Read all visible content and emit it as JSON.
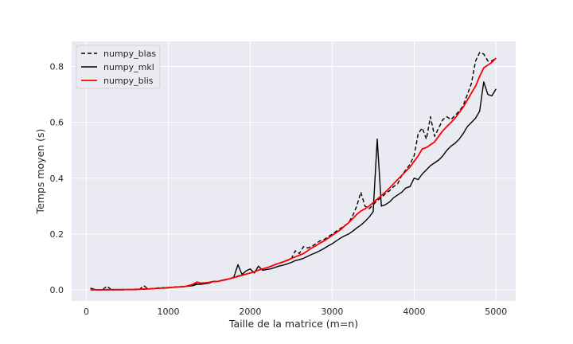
{
  "chart_data": {
    "type": "line",
    "xlabel": "Taille de la matrice (m=n)",
    "ylabel": "Temps moyen (s)",
    "xlim": [
      -180,
      5240
    ],
    "ylim": [
      -0.04,
      0.89
    ],
    "x_ticks": [
      0,
      1000,
      2000,
      3000,
      4000,
      5000
    ],
    "y_ticks": [
      0.0,
      0.2,
      0.4,
      0.6,
      0.8
    ],
    "x_tick_labels": [
      "0",
      "1000",
      "2000",
      "3000",
      "4000",
      "5000"
    ],
    "y_tick_labels": [
      "0.0",
      "0.2",
      "0.4",
      "0.6",
      "0.8"
    ],
    "grid": true,
    "legend_position": "top-left",
    "background": "#eaeaf2",
    "series": [
      {
        "name": "numpy_blas",
        "color": "#000000",
        "dash": "dashed",
        "points": [
          [
            50,
            0.006
          ],
          [
            100,
            0.002
          ],
          [
            150,
            0.0
          ],
          [
            200,
            0.001
          ],
          [
            250,
            0.013
          ],
          [
            300,
            0.002
          ],
          [
            350,
            0.001
          ],
          [
            400,
            0.001
          ],
          [
            450,
            0.001
          ],
          [
            500,
            0.001
          ],
          [
            550,
            0.0
          ],
          [
            600,
            0.001
          ],
          [
            650,
            0.002
          ],
          [
            700,
            0.015
          ],
          [
            750,
            0.004
          ],
          [
            800,
            0.004
          ],
          [
            850,
            0.006
          ],
          [
            900,
            0.008
          ],
          [
            950,
            0.008
          ],
          [
            1000,
            0.008
          ],
          [
            1050,
            0.009
          ],
          [
            1100,
            0.011
          ],
          [
            1150,
            0.01
          ],
          [
            1200,
            0.012
          ],
          [
            1250,
            0.016
          ],
          [
            1300,
            0.017
          ],
          [
            1350,
            0.022
          ],
          [
            1400,
            0.024
          ],
          [
            1450,
            0.027
          ],
          [
            1500,
            0.025
          ],
          [
            1550,
            0.03
          ],
          [
            1600,
            0.03
          ],
          [
            1650,
            0.033
          ],
          [
            1700,
            0.036
          ],
          [
            1750,
            0.04
          ],
          [
            1800,
            0.045
          ],
          [
            1850,
            0.05
          ],
          [
            1900,
            0.053
          ],
          [
            1950,
            0.056
          ],
          [
            2000,
            0.06
          ],
          [
            2050,
            0.065
          ],
          [
            2100,
            0.071
          ],
          [
            2150,
            0.075
          ],
          [
            2200,
            0.079
          ],
          [
            2250,
            0.084
          ],
          [
            2300,
            0.09
          ],
          [
            2350,
            0.095
          ],
          [
            2400,
            0.1
          ],
          [
            2450,
            0.105
          ],
          [
            2500,
            0.11
          ],
          [
            2550,
            0.14
          ],
          [
            2600,
            0.13
          ],
          [
            2650,
            0.155
          ],
          [
            2700,
            0.15
          ],
          [
            2750,
            0.155
          ],
          [
            2800,
            0.165
          ],
          [
            2850,
            0.175
          ],
          [
            2900,
            0.18
          ],
          [
            2950,
            0.19
          ],
          [
            3000,
            0.2
          ],
          [
            3050,
            0.21
          ],
          [
            3100,
            0.22
          ],
          [
            3150,
            0.23
          ],
          [
            3200,
            0.24
          ],
          [
            3250,
            0.265
          ],
          [
            3300,
            0.3
          ],
          [
            3350,
            0.35
          ],
          [
            3400,
            0.3
          ],
          [
            3450,
            0.29
          ],
          [
            3500,
            0.305
          ],
          [
            3550,
            0.32
          ],
          [
            3600,
            0.33
          ],
          [
            3650,
            0.345
          ],
          [
            3700,
            0.355
          ],
          [
            3750,
            0.37
          ],
          [
            3800,
            0.38
          ],
          [
            3850,
            0.41
          ],
          [
            3900,
            0.43
          ],
          [
            3950,
            0.45
          ],
          [
            4000,
            0.48
          ],
          [
            4050,
            0.56
          ],
          [
            4100,
            0.58
          ],
          [
            4150,
            0.54
          ],
          [
            4200,
            0.62
          ],
          [
            4250,
            0.55
          ],
          [
            4300,
            0.58
          ],
          [
            4350,
            0.61
          ],
          [
            4400,
            0.62
          ],
          [
            4450,
            0.61
          ],
          [
            4500,
            0.625
          ],
          [
            4550,
            0.64
          ],
          [
            4600,
            0.66
          ],
          [
            4650,
            0.7
          ],
          [
            4700,
            0.74
          ],
          [
            4750,
            0.82
          ],
          [
            4800,
            0.85
          ],
          [
            4850,
            0.845
          ],
          [
            4900,
            0.82
          ],
          [
            4950,
            0.82
          ],
          [
            5000,
            0.83
          ]
        ]
      },
      {
        "name": "numpy_mkl",
        "color": "#000000",
        "dash": "solid",
        "points": [
          [
            50,
            0.0
          ],
          [
            100,
            0.0
          ],
          [
            150,
            0.0
          ],
          [
            200,
            0.0
          ],
          [
            250,
            0.0
          ],
          [
            300,
            0.0
          ],
          [
            350,
            0.0
          ],
          [
            400,
            0.0
          ],
          [
            450,
            0.0
          ],
          [
            500,
            0.001
          ],
          [
            550,
            0.001
          ],
          [
            600,
            0.001
          ],
          [
            650,
            0.002
          ],
          [
            700,
            0.002
          ],
          [
            750,
            0.003
          ],
          [
            800,
            0.004
          ],
          [
            850,
            0.005
          ],
          [
            900,
            0.006
          ],
          [
            950,
            0.006
          ],
          [
            1000,
            0.007
          ],
          [
            1050,
            0.009
          ],
          [
            1100,
            0.01
          ],
          [
            1150,
            0.011
          ],
          [
            1200,
            0.012
          ],
          [
            1250,
            0.013
          ],
          [
            1300,
            0.015
          ],
          [
            1350,
            0.02
          ],
          [
            1400,
            0.02
          ],
          [
            1450,
            0.022
          ],
          [
            1500,
            0.024
          ],
          [
            1550,
            0.03
          ],
          [
            1600,
            0.03
          ],
          [
            1650,
            0.033
          ],
          [
            1700,
            0.036
          ],
          [
            1750,
            0.04
          ],
          [
            1800,
            0.045
          ],
          [
            1850,
            0.09
          ],
          [
            1900,
            0.055
          ],
          [
            1950,
            0.068
          ],
          [
            2000,
            0.075
          ],
          [
            2050,
            0.06
          ],
          [
            2100,
            0.085
          ],
          [
            2150,
            0.07
          ],
          [
            2200,
            0.073
          ],
          [
            2250,
            0.075
          ],
          [
            2300,
            0.08
          ],
          [
            2350,
            0.085
          ],
          [
            2400,
            0.088
          ],
          [
            2450,
            0.093
          ],
          [
            2500,
            0.098
          ],
          [
            2550,
            0.105
          ],
          [
            2600,
            0.108
          ],
          [
            2650,
            0.113
          ],
          [
            2700,
            0.12
          ],
          [
            2750,
            0.127
          ],
          [
            2800,
            0.133
          ],
          [
            2850,
            0.14
          ],
          [
            2900,
            0.148
          ],
          [
            2950,
            0.157
          ],
          [
            3000,
            0.165
          ],
          [
            3050,
            0.175
          ],
          [
            3100,
            0.185
          ],
          [
            3150,
            0.193
          ],
          [
            3200,
            0.2
          ],
          [
            3250,
            0.21
          ],
          [
            3300,
            0.222
          ],
          [
            3350,
            0.232
          ],
          [
            3400,
            0.245
          ],
          [
            3450,
            0.26
          ],
          [
            3500,
            0.28
          ],
          [
            3550,
            0.54
          ],
          [
            3600,
            0.3
          ],
          [
            3650,
            0.305
          ],
          [
            3700,
            0.315
          ],
          [
            3750,
            0.33
          ],
          [
            3800,
            0.34
          ],
          [
            3850,
            0.35
          ],
          [
            3900,
            0.365
          ],
          [
            3950,
            0.37
          ],
          [
            4000,
            0.4
          ],
          [
            4050,
            0.395
          ],
          [
            4100,
            0.415
          ],
          [
            4150,
            0.43
          ],
          [
            4200,
            0.445
          ],
          [
            4250,
            0.455
          ],
          [
            4300,
            0.465
          ],
          [
            4350,
            0.48
          ],
          [
            4400,
            0.5
          ],
          [
            4450,
            0.515
          ],
          [
            4500,
            0.525
          ],
          [
            4550,
            0.54
          ],
          [
            4600,
            0.56
          ],
          [
            4650,
            0.585
          ],
          [
            4700,
            0.6
          ],
          [
            4750,
            0.615
          ],
          [
            4800,
            0.64
          ],
          [
            4850,
            0.745
          ],
          [
            4900,
            0.7
          ],
          [
            4950,
            0.695
          ],
          [
            5000,
            0.72
          ]
        ]
      },
      {
        "name": "numpy_blis",
        "color": "#ff0000",
        "dash": "solid",
        "points": [
          [
            50,
            0.001
          ],
          [
            100,
            0.001
          ],
          [
            150,
            0.0
          ],
          [
            200,
            0.0
          ],
          [
            250,
            0.001
          ],
          [
            300,
            0.001
          ],
          [
            350,
            0.001
          ],
          [
            400,
            0.001
          ],
          [
            450,
            0.001
          ],
          [
            500,
            0.001
          ],
          [
            550,
            0.001
          ],
          [
            600,
            0.002
          ],
          [
            650,
            0.002
          ],
          [
            700,
            0.003
          ],
          [
            750,
            0.003
          ],
          [
            800,
            0.004
          ],
          [
            850,
            0.005
          ],
          [
            900,
            0.006
          ],
          [
            950,
            0.007
          ],
          [
            1000,
            0.008
          ],
          [
            1050,
            0.009
          ],
          [
            1100,
            0.01
          ],
          [
            1150,
            0.011
          ],
          [
            1200,
            0.012
          ],
          [
            1250,
            0.015
          ],
          [
            1300,
            0.02
          ],
          [
            1350,
            0.028
          ],
          [
            1400,
            0.024
          ],
          [
            1450,
            0.025
          ],
          [
            1500,
            0.027
          ],
          [
            1550,
            0.03
          ],
          [
            1600,
            0.03
          ],
          [
            1650,
            0.034
          ],
          [
            1700,
            0.037
          ],
          [
            1750,
            0.04
          ],
          [
            1800,
            0.044
          ],
          [
            1850,
            0.048
          ],
          [
            1900,
            0.052
          ],
          [
            1950,
            0.056
          ],
          [
            2000,
            0.06
          ],
          [
            2050,
            0.065
          ],
          [
            2100,
            0.07
          ],
          [
            2150,
            0.075
          ],
          [
            2200,
            0.079
          ],
          [
            2250,
            0.084
          ],
          [
            2300,
            0.09
          ],
          [
            2350,
            0.095
          ],
          [
            2400,
            0.1
          ],
          [
            2450,
            0.106
          ],
          [
            2500,
            0.112
          ],
          [
            2550,
            0.118
          ],
          [
            2600,
            0.124
          ],
          [
            2650,
            0.13
          ],
          [
            2700,
            0.14
          ],
          [
            2750,
            0.15
          ],
          [
            2800,
            0.158
          ],
          [
            2850,
            0.167
          ],
          [
            2900,
            0.175
          ],
          [
            2950,
            0.185
          ],
          [
            3000,
            0.195
          ],
          [
            3050,
            0.205
          ],
          [
            3100,
            0.215
          ],
          [
            3150,
            0.228
          ],
          [
            3200,
            0.24
          ],
          [
            3250,
            0.255
          ],
          [
            3300,
            0.27
          ],
          [
            3350,
            0.282
          ],
          [
            3400,
            0.29
          ],
          [
            3450,
            0.3
          ],
          [
            3500,
            0.312
          ],
          [
            3550,
            0.325
          ],
          [
            3600,
            0.338
          ],
          [
            3650,
            0.35
          ],
          [
            3700,
            0.365
          ],
          [
            3750,
            0.38
          ],
          [
            3800,
            0.395
          ],
          [
            3850,
            0.41
          ],
          [
            3900,
            0.425
          ],
          [
            3950,
            0.44
          ],
          [
            4000,
            0.46
          ],
          [
            4050,
            0.48
          ],
          [
            4100,
            0.505
          ],
          [
            4150,
            0.51
          ],
          [
            4200,
            0.52
          ],
          [
            4250,
            0.53
          ],
          [
            4300,
            0.55
          ],
          [
            4350,
            0.57
          ],
          [
            4400,
            0.585
          ],
          [
            4450,
            0.6
          ],
          [
            4500,
            0.615
          ],
          [
            4550,
            0.635
          ],
          [
            4600,
            0.655
          ],
          [
            4650,
            0.68
          ],
          [
            4700,
            0.705
          ],
          [
            4750,
            0.73
          ],
          [
            4800,
            0.765
          ],
          [
            4850,
            0.795
          ],
          [
            4900,
            0.805
          ],
          [
            4950,
            0.815
          ],
          [
            5000,
            0.83
          ]
        ]
      }
    ]
  }
}
